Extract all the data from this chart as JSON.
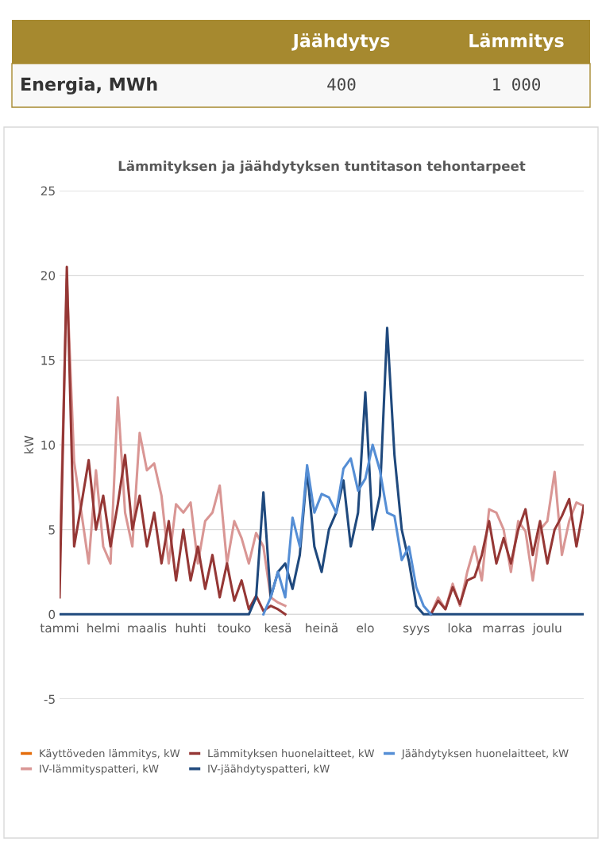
{
  "chart_data": [
    {
      "type": "other",
      "annotations": [
        "Energia, MWh",
        "Jäähdytys",
        "400",
        "Lämmitys",
        "1 000"
      ]
    },
    {
      "type": "line",
      "title": "Lämmityksen ja jäähdytyksen tuntitason tehontarpeet",
      "ylabel": "kW",
      "ylim": [
        -5,
        25
      ],
      "yticks": [
        -5,
        0,
        5,
        10,
        15,
        20,
        25
      ],
      "categories": [
        "tammi",
        null,
        null,
        null,
        null,
        null,
        "helmi",
        null,
        null,
        null,
        null,
        null,
        "maalis",
        null,
        null,
        null,
        null,
        null,
        "huhti",
        null,
        null,
        null,
        null,
        null,
        "touko",
        null,
        null,
        null,
        null,
        null,
        "kesä",
        null,
        null,
        null,
        null,
        null,
        "heinä",
        null,
        null,
        null,
        null,
        null,
        "elo",
        null,
        null,
        null,
        null,
        null,
        null,
        "syys",
        null,
        null,
        null,
        null,
        null,
        "loka",
        null,
        null,
        null,
        null,
        null,
        "marras",
        null,
        null,
        null,
        null,
        null,
        "joulu",
        null,
        null,
        null,
        null,
        null
      ],
      "grid": "y",
      "legend": "bottom",
      "series": [
        {
          "name": "Käyttöveden lämmitys, kW",
          "color": "#e46c0a",
          "values": [
            null,
            null,
            null,
            null,
            null,
            null,
            null,
            null,
            null,
            null,
            null,
            null,
            null,
            null,
            null,
            null,
            null,
            null,
            null,
            null,
            null,
            null,
            null,
            null,
            null,
            null,
            null,
            null,
            null,
            null,
            null,
            null,
            null,
            null,
            null,
            null,
            null,
            null,
            null,
            null,
            null,
            null,
            null,
            null,
            null,
            null,
            null,
            null,
            null,
            null,
            null,
            null,
            null,
            null,
            null,
            null,
            null,
            null,
            null,
            null,
            null,
            null,
            null,
            null,
            null,
            null,
            null,
            null,
            null,
            null,
            null,
            null,
            null
          ]
        },
        {
          "name": "IV-lämmityspatteri, kW",
          "color": "#d99694",
          "values": [
            3,
            19.8,
            9,
            6,
            3,
            8.5,
            4,
            3,
            12.8,
            6,
            4,
            10.7,
            8.5,
            8.9,
            7,
            3,
            6.5,
            6,
            6.6,
            3,
            5.5,
            6,
            7.6,
            3,
            5.5,
            4.5,
            3,
            4.8,
            4,
            1,
            0.7,
            0.5,
            null,
            null,
            null,
            null,
            null,
            null,
            null,
            null,
            null,
            null,
            null,
            null,
            null,
            null,
            null,
            null,
            null,
            null,
            null,
            0,
            1.0,
            0.3,
            1.8,
            0.5,
            2.5,
            4.0,
            2,
            6.2,
            6.0,
            5,
            2.5,
            5.5,
            4.9,
            2,
            5,
            5.5,
            8.4,
            3.5,
            5.5,
            6.6,
            6.4
          ]
        },
        {
          "name": "Lämmityksen huonelaitteet, kW",
          "color": "#953735",
          "values": [
            1,
            20.5,
            4,
            6.5,
            9.1,
            5,
            7,
            4,
            6.5,
            9.4,
            5,
            7,
            4,
            6,
            3,
            5.5,
            2,
            5,
            2,
            4,
            1.5,
            3.5,
            1,
            3,
            0.8,
            2,
            0.3,
            1.1,
            0.2,
            0.5,
            0.3,
            0,
            null,
            null,
            null,
            null,
            null,
            null,
            null,
            null,
            null,
            null,
            null,
            null,
            null,
            null,
            null,
            null,
            null,
            null,
            null,
            0,
            0.8,
            0.3,
            1.6,
            0.6,
            2,
            2.2,
            3.5,
            5.5,
            3,
            4.5,
            3,
            5,
            6.2,
            3.5,
            5.5,
            3,
            5,
            5.8,
            6.8,
            4,
            6.4
          ]
        },
        {
          "name": "IV-jäähdytyspatteri, kW",
          "color": "#1f497d",
          "values": [
            0,
            0,
            0,
            0,
            0,
            0,
            0,
            0,
            0,
            0,
            0,
            0,
            0,
            0,
            0,
            0,
            0,
            0,
            0,
            0,
            0,
            0,
            0,
            0,
            0,
            0,
            0,
            1,
            7.2,
            1,
            2.5,
            3,
            1.5,
            3.5,
            8.5,
            4,
            2.5,
            5,
            6,
            7.9,
            4,
            6,
            13.1,
            5,
            7,
            16.9,
            9.4,
            5,
            3.1,
            0.5,
            0,
            0,
            0,
            0,
            0,
            0,
            0,
            0,
            0,
            0,
            0,
            0,
            0,
            0,
            0,
            0,
            0,
            0,
            0,
            0,
            0,
            0,
            0
          ]
        },
        {
          "name": "Jäähdytyksen huonelaitteet, kW",
          "color": "#558ed5",
          "values": [
            null,
            null,
            null,
            null,
            null,
            null,
            null,
            null,
            null,
            null,
            null,
            null,
            null,
            null,
            null,
            null,
            null,
            null,
            null,
            null,
            null,
            null,
            null,
            null,
            null,
            null,
            null,
            null,
            0,
            1,
            2.5,
            1,
            5.7,
            4,
            8.8,
            6,
            7.1,
            6.9,
            6,
            8.6,
            9.2,
            7.3,
            8,
            10.0,
            8.5,
            6,
            5.8,
            3.2,
            4,
            1.6,
            0.5,
            0,
            null,
            null,
            null,
            null,
            null,
            null,
            null,
            null,
            null,
            null,
            null,
            null,
            null,
            null,
            null,
            null,
            null,
            null,
            null,
            null,
            null
          ]
        }
      ]
    }
  ]
}
